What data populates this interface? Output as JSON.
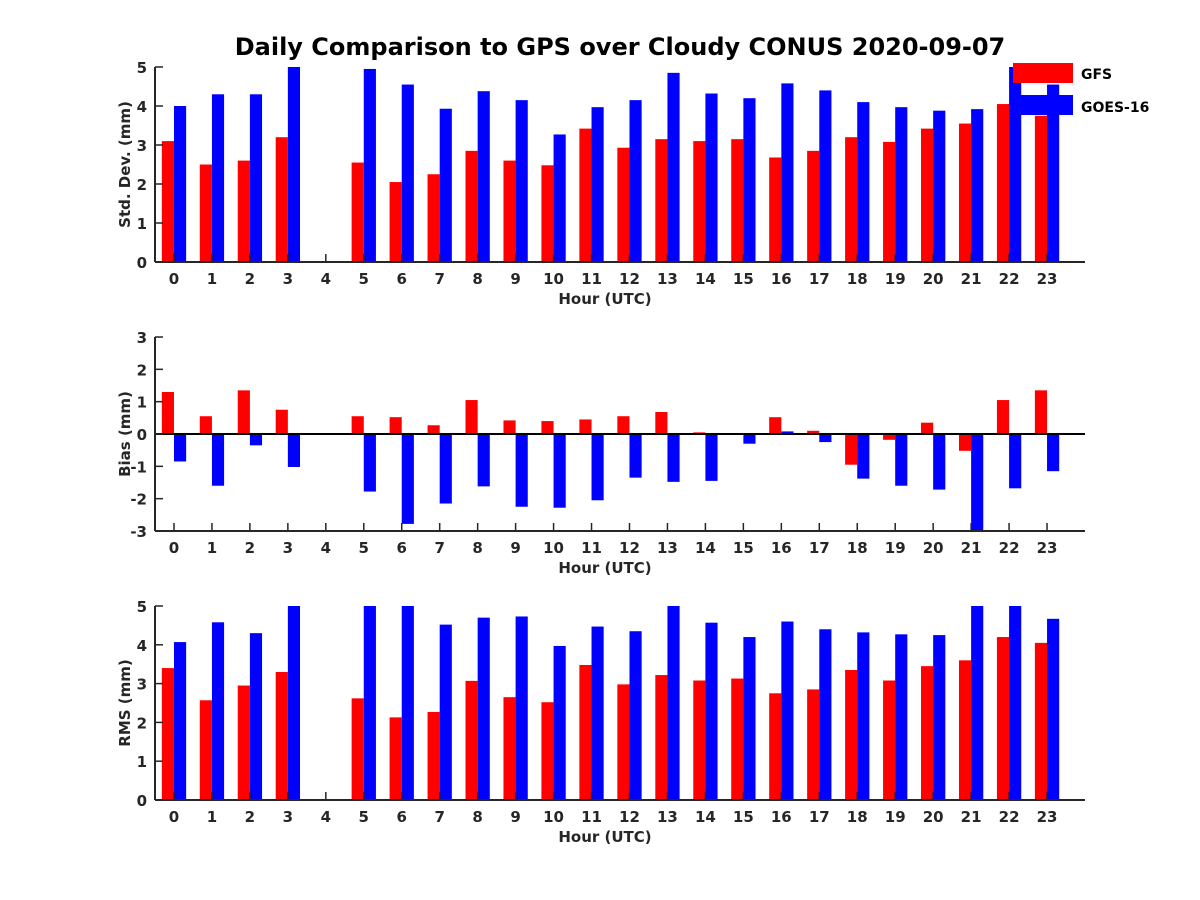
{
  "title": "Daily Comparison to GPS over Cloudy CONUS 2020-09-07",
  "legend": {
    "placement": "top-right",
    "entries": [
      {
        "name": "GFS",
        "color": "#ff0000"
      },
      {
        "name": "GOES-16",
        "color": "#0000ff"
      }
    ]
  },
  "chart_data": [
    {
      "type": "bar",
      "title": "Daily Comparison to GPS over Cloudy CONUS 2020-09-07",
      "xlabel": "Hour (UTC)",
      "ylabel": "Std. Dev. (mm)",
      "ylim": [
        0,
        5
      ],
      "yticks": [
        0,
        1,
        2,
        3,
        4,
        5
      ],
      "categories": [
        "0",
        "1",
        "2",
        "3",
        "4",
        "5",
        "6",
        "7",
        "8",
        "9",
        "10",
        "11",
        "12",
        "13",
        "14",
        "15",
        "16",
        "17",
        "18",
        "19",
        "20",
        "21",
        "22",
        "23"
      ],
      "series": [
        {
          "name": "GFS",
          "color": "#ff0000",
          "values": [
            3.1,
            2.5,
            2.6,
            3.2,
            null,
            2.55,
            2.05,
            2.25,
            2.85,
            2.6,
            2.48,
            3.42,
            2.93,
            3.15,
            3.1,
            3.15,
            2.68,
            2.85,
            3.2,
            3.08,
            3.42,
            3.55,
            4.05,
            3.75
          ]
        },
        {
          "name": "GOES-16",
          "color": "#0000ff",
          "values": [
            4.0,
            4.3,
            4.3,
            5.0,
            null,
            4.95,
            4.55,
            3.93,
            4.38,
            4.15,
            3.27,
            3.97,
            4.15,
            4.85,
            4.32,
            4.2,
            4.58,
            4.4,
            4.1,
            3.97,
            3.88,
            3.92,
            5.0,
            4.55
          ]
        }
      ],
      "grid": false,
      "legend": "top-right"
    },
    {
      "type": "bar",
      "xlabel": "Hour (UTC)",
      "ylabel": "Bias (mm)",
      "ylim": [
        -3,
        3
      ],
      "yticks": [
        -3,
        -2,
        -1,
        0,
        1,
        2,
        3
      ],
      "categories": [
        "0",
        "1",
        "2",
        "3",
        "4",
        "5",
        "6",
        "7",
        "8",
        "9",
        "10",
        "11",
        "12",
        "13",
        "14",
        "15",
        "16",
        "17",
        "18",
        "19",
        "20",
        "21",
        "22",
        "23"
      ],
      "series": [
        {
          "name": "GFS",
          "color": "#ff0000",
          "values": [
            1.3,
            0.55,
            1.35,
            0.75,
            null,
            0.55,
            0.52,
            0.27,
            1.05,
            0.42,
            0.4,
            0.45,
            0.55,
            0.68,
            0.05,
            0.02,
            0.52,
            0.1,
            -0.95,
            -0.18,
            0.35,
            -0.52,
            1.05,
            1.35
          ]
        },
        {
          "name": "GOES-16",
          "color": "#0000ff",
          "values": [
            -0.85,
            -1.6,
            -0.35,
            -1.02,
            null,
            -1.78,
            -2.78,
            -2.15,
            -1.62,
            -2.25,
            -2.28,
            -2.05,
            -1.35,
            -1.48,
            -1.45,
            -0.3,
            0.08,
            -0.25,
            -1.38,
            -1.6,
            -1.72,
            -3.0,
            -1.68,
            -1.15
          ]
        }
      ],
      "grid": false
    },
    {
      "type": "bar",
      "xlabel": "Hour (UTC)",
      "ylabel": "RMS (mm)",
      "ylim": [
        0,
        5
      ],
      "yticks": [
        0,
        1,
        2,
        3,
        4,
        5
      ],
      "categories": [
        "0",
        "1",
        "2",
        "3",
        "4",
        "5",
        "6",
        "7",
        "8",
        "9",
        "10",
        "11",
        "12",
        "13",
        "14",
        "15",
        "16",
        "17",
        "18",
        "19",
        "20",
        "21",
        "22",
        "23"
      ],
      "series": [
        {
          "name": "GFS",
          "color": "#ff0000",
          "values": [
            3.4,
            2.57,
            2.95,
            3.3,
            null,
            2.62,
            2.13,
            2.27,
            3.07,
            2.65,
            2.52,
            3.48,
            2.98,
            3.22,
            3.08,
            3.13,
            2.75,
            2.85,
            3.35,
            3.08,
            3.45,
            3.6,
            4.2,
            4.05
          ]
        },
        {
          "name": "GOES-16",
          "color": "#0000ff",
          "values": [
            4.07,
            4.58,
            4.3,
            5.0,
            null,
            5.0,
            5.0,
            4.52,
            4.7,
            4.73,
            3.97,
            4.47,
            4.35,
            5.0,
            4.57,
            4.2,
            4.6,
            4.4,
            4.32,
            4.27,
            4.25,
            5.0,
            5.0,
            4.67
          ]
        }
      ],
      "grid": false
    }
  ]
}
